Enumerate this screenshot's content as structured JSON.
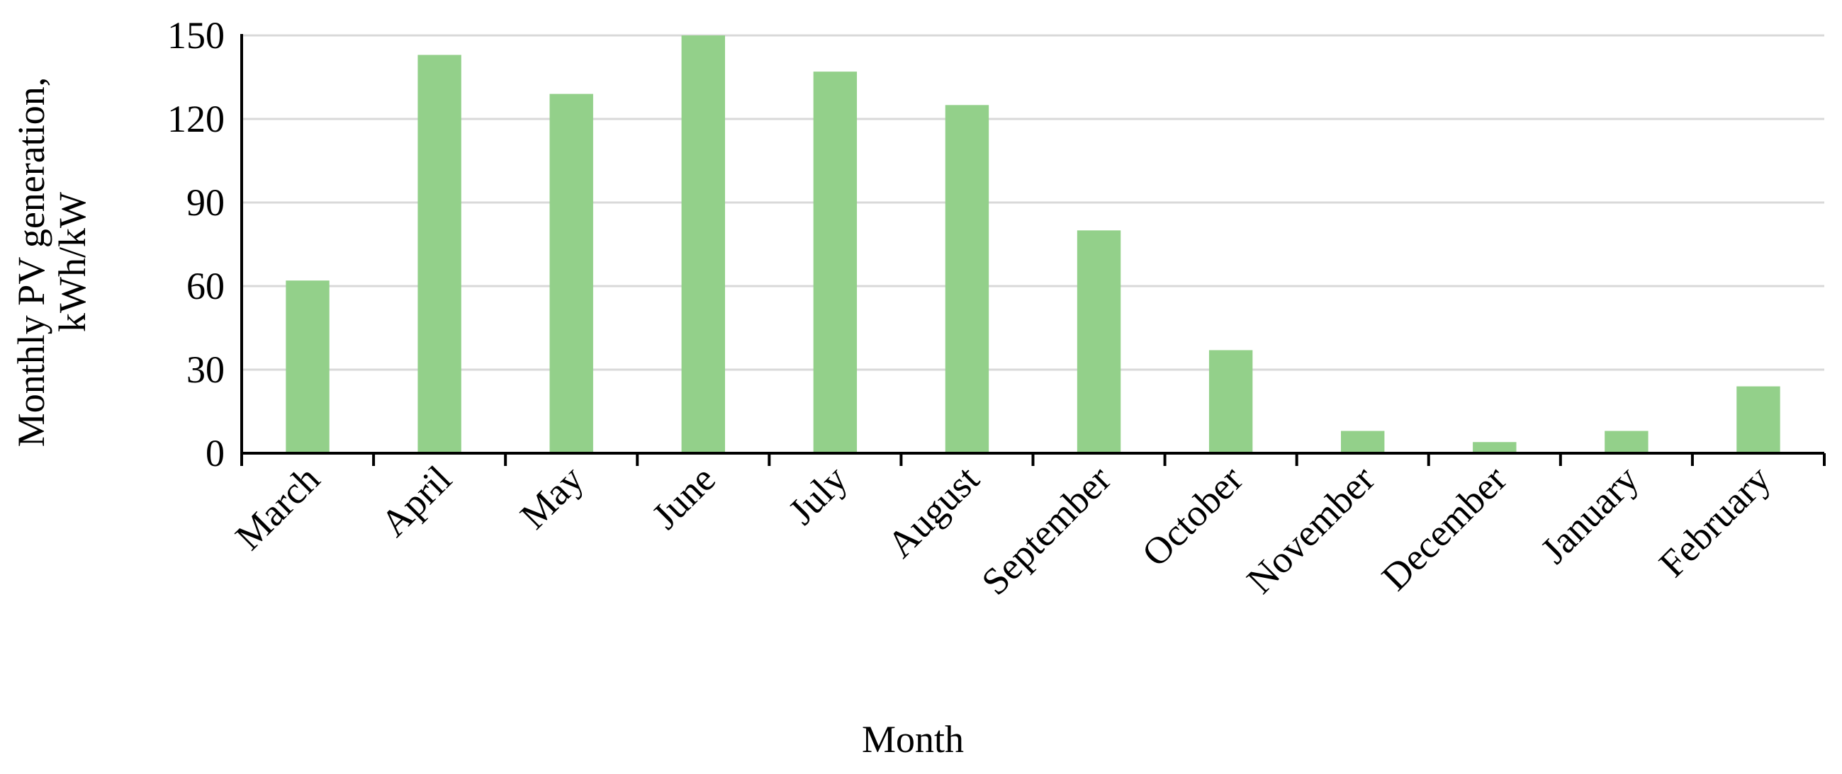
{
  "chart_data": {
    "type": "bar",
    "xlabel": "Month",
    "ylabel": [
      "Monthly PV generation,",
      "kWh/kW"
    ],
    "categories": [
      "March",
      "April",
      "May",
      "June",
      "July",
      "August",
      "September",
      "October",
      "November",
      "December",
      "January",
      "February"
    ],
    "values": [
      62,
      143,
      129,
      150,
      137,
      125,
      80,
      37,
      8,
      4,
      8,
      24
    ],
    "color": "#93d08a",
    "ylim": [
      0,
      150
    ],
    "yticks": [
      0,
      30,
      60,
      90,
      120,
      150
    ],
    "grid": true
  }
}
